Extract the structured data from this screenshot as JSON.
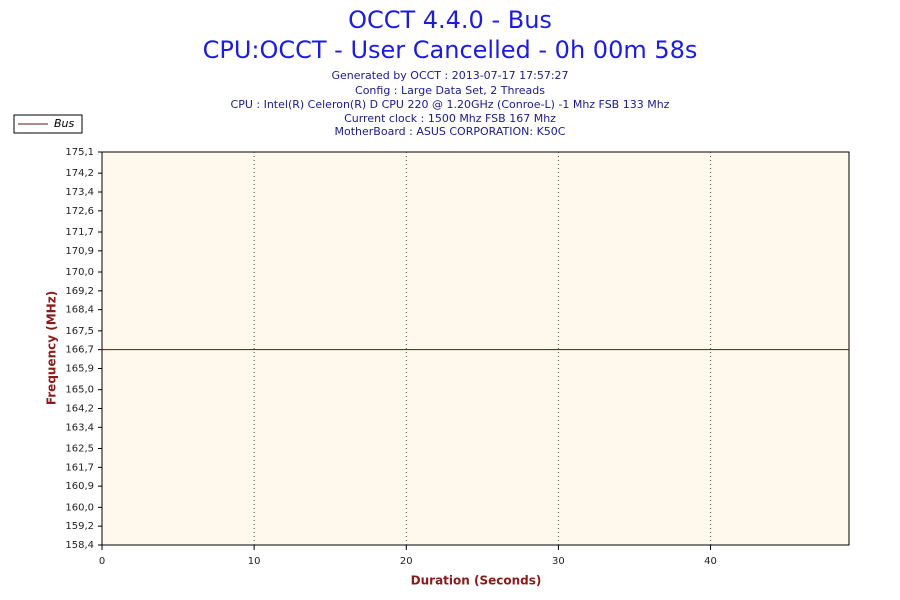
{
  "chart_data": {
    "type": "line",
    "title": "OCCT 4.4.0 - Bus",
    "subtitle": "CPU:OCCT - User Cancelled - 0h 00m 58s",
    "info": [
      "Generated by OCCT : 2013-07-17 17:57:27",
      "Config : Large Data Set, 2 Threads",
      "CPU : Intel(R) Celeron(R) D CPU 220 @ 1.20GHz (Conroe-L) -1 Mhz FSB 133 Mhz",
      "Current clock : 1500 Mhz FSB 167 Mhz",
      "MotherBoard : ASUS CORPORATION: K50C"
    ],
    "x_label": "Duration (Seconds)",
    "y_label": "Frequency (MHz)",
    "x": [
      0,
      49.1
    ],
    "series": [
      {
        "name": "Bus",
        "color": "#5a1e10",
        "values": [
          166.7,
          166.7
        ]
      }
    ],
    "xlim": [
      0,
      49.1
    ],
    "xticks": [
      0,
      10,
      20,
      30,
      40
    ],
    "ylim": [
      158.4,
      175.1
    ],
    "yticks": [
      {
        "value": 158.4,
        "label": "158,4"
      },
      {
        "value": 159.2,
        "label": "159,2"
      },
      {
        "value": 160.0,
        "label": "160,0"
      },
      {
        "value": 160.9,
        "label": "160,9"
      },
      {
        "value": 161.7,
        "label": "161,7"
      },
      {
        "value": 162.5,
        "label": "162,5"
      },
      {
        "value": 163.4,
        "label": "163,4"
      },
      {
        "value": 164.2,
        "label": "164,2"
      },
      {
        "value": 165.0,
        "label": "165,0"
      },
      {
        "value": 165.9,
        "label": "165,9"
      },
      {
        "value": 166.7,
        "label": "166,7"
      },
      {
        "value": 167.5,
        "label": "167,5"
      },
      {
        "value": 168.4,
        "label": "168,4"
      },
      {
        "value": 169.2,
        "label": "169,2"
      },
      {
        "value": 170.0,
        "label": "170,0"
      },
      {
        "value": 170.9,
        "label": "170,9"
      },
      {
        "value": 171.7,
        "label": "171,7"
      },
      {
        "value": 172.6,
        "label": "172,6"
      },
      {
        "value": 173.4,
        "label": "173,4"
      },
      {
        "value": 174.2,
        "label": "174,2"
      },
      {
        "value": 175.1,
        "label": "175,1"
      }
    ],
    "grid": true,
    "legend": "top-left"
  }
}
